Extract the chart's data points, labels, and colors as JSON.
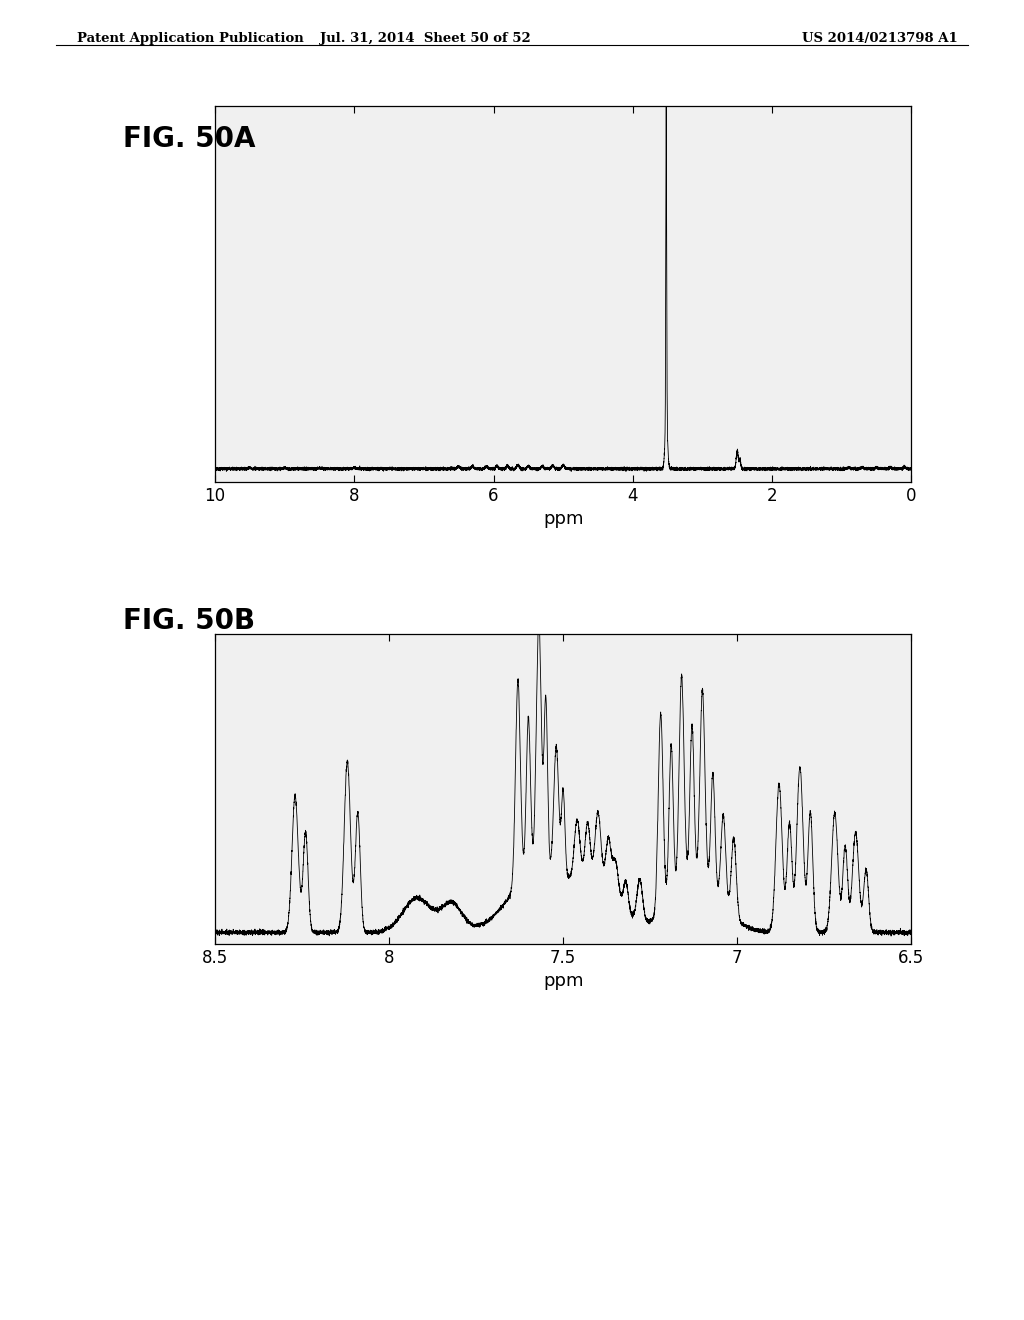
{
  "header_left": "Patent Application Publication",
  "header_mid": "Jul. 31, 2014  Sheet 50 of 52",
  "header_right": "US 2014/0213798 A1",
  "fig_a_label": "FIG. 50A",
  "fig_b_label": "FIG. 50B",
  "fig_a_xlabel": "ppm",
  "fig_b_xlabel": "ppm",
  "fig_a_xlim": [
    10,
    0
  ],
  "fig_a_xticks": [
    10,
    8,
    6,
    4,
    2,
    0
  ],
  "fig_b_xlim": [
    8.5,
    6.5
  ],
  "fig_b_xticks": [
    8.5,
    8.0,
    7.5,
    7.0,
    6.5
  ],
  "fig_b_xticklabels": [
    "8.5",
    "8",
    "7.5",
    "7",
    "6.5"
  ],
  "background_color": "#ffffff",
  "line_color": "#000000",
  "header_fontsize": 9.5,
  "label_fontsize": 20,
  "tick_fontsize": 12,
  "axis_label_fontsize": 13
}
